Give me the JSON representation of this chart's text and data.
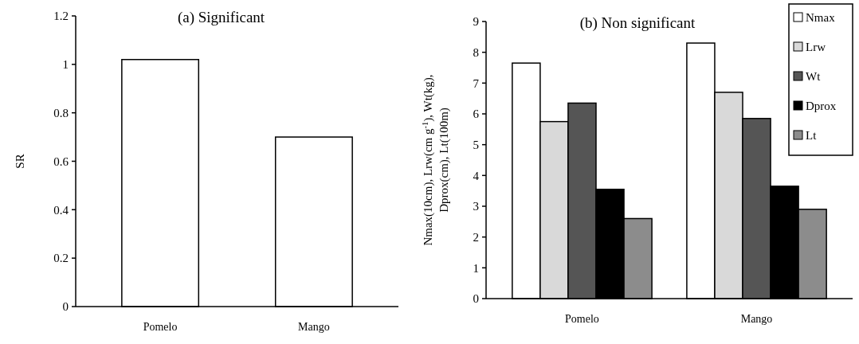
{
  "chart_data": [
    {
      "type": "bar",
      "title": "(a) Significant",
      "ylabel": "SR",
      "categories": [
        "Pomelo",
        "Mango"
      ],
      "values": [
        1.02,
        0.7
      ],
      "color": "#ffffff",
      "ylim": [
        0,
        1.2
      ],
      "yticks": [
        0,
        0.2,
        0.4,
        0.6,
        0.8,
        1,
        1.2
      ],
      "grid": false,
      "legend": false
    },
    {
      "type": "bar",
      "title": "(b) Non significant",
      "ylabel": "Nmax(10cm), Lrw(cm g$^{-1}$), Wt(kg),\nDprox(cm), Lt(100m)",
      "categories": [
        "Pomelo",
        "Mango"
      ],
      "series": [
        {
          "name": "Nmax",
          "color": "#ffffff",
          "values": [
            7.65,
            8.3
          ]
        },
        {
          "name": "Lrw",
          "color": "#d9d9d9",
          "values": [
            5.75,
            6.7
          ]
        },
        {
          "name": "Wt",
          "color": "#555555",
          "values": [
            6.35,
            5.85
          ]
        },
        {
          "name": "Dprox",
          "color": "#000000",
          "values": [
            3.55,
            3.65
          ]
        },
        {
          "name": "Lt",
          "color": "#8c8c8c",
          "values": [
            2.6,
            2.9
          ]
        }
      ],
      "ylim": [
        0,
        9
      ],
      "yticks": [
        0,
        1,
        2,
        3,
        4,
        5,
        6,
        7,
        8,
        9
      ],
      "grid": false,
      "legend": "top right"
    }
  ]
}
